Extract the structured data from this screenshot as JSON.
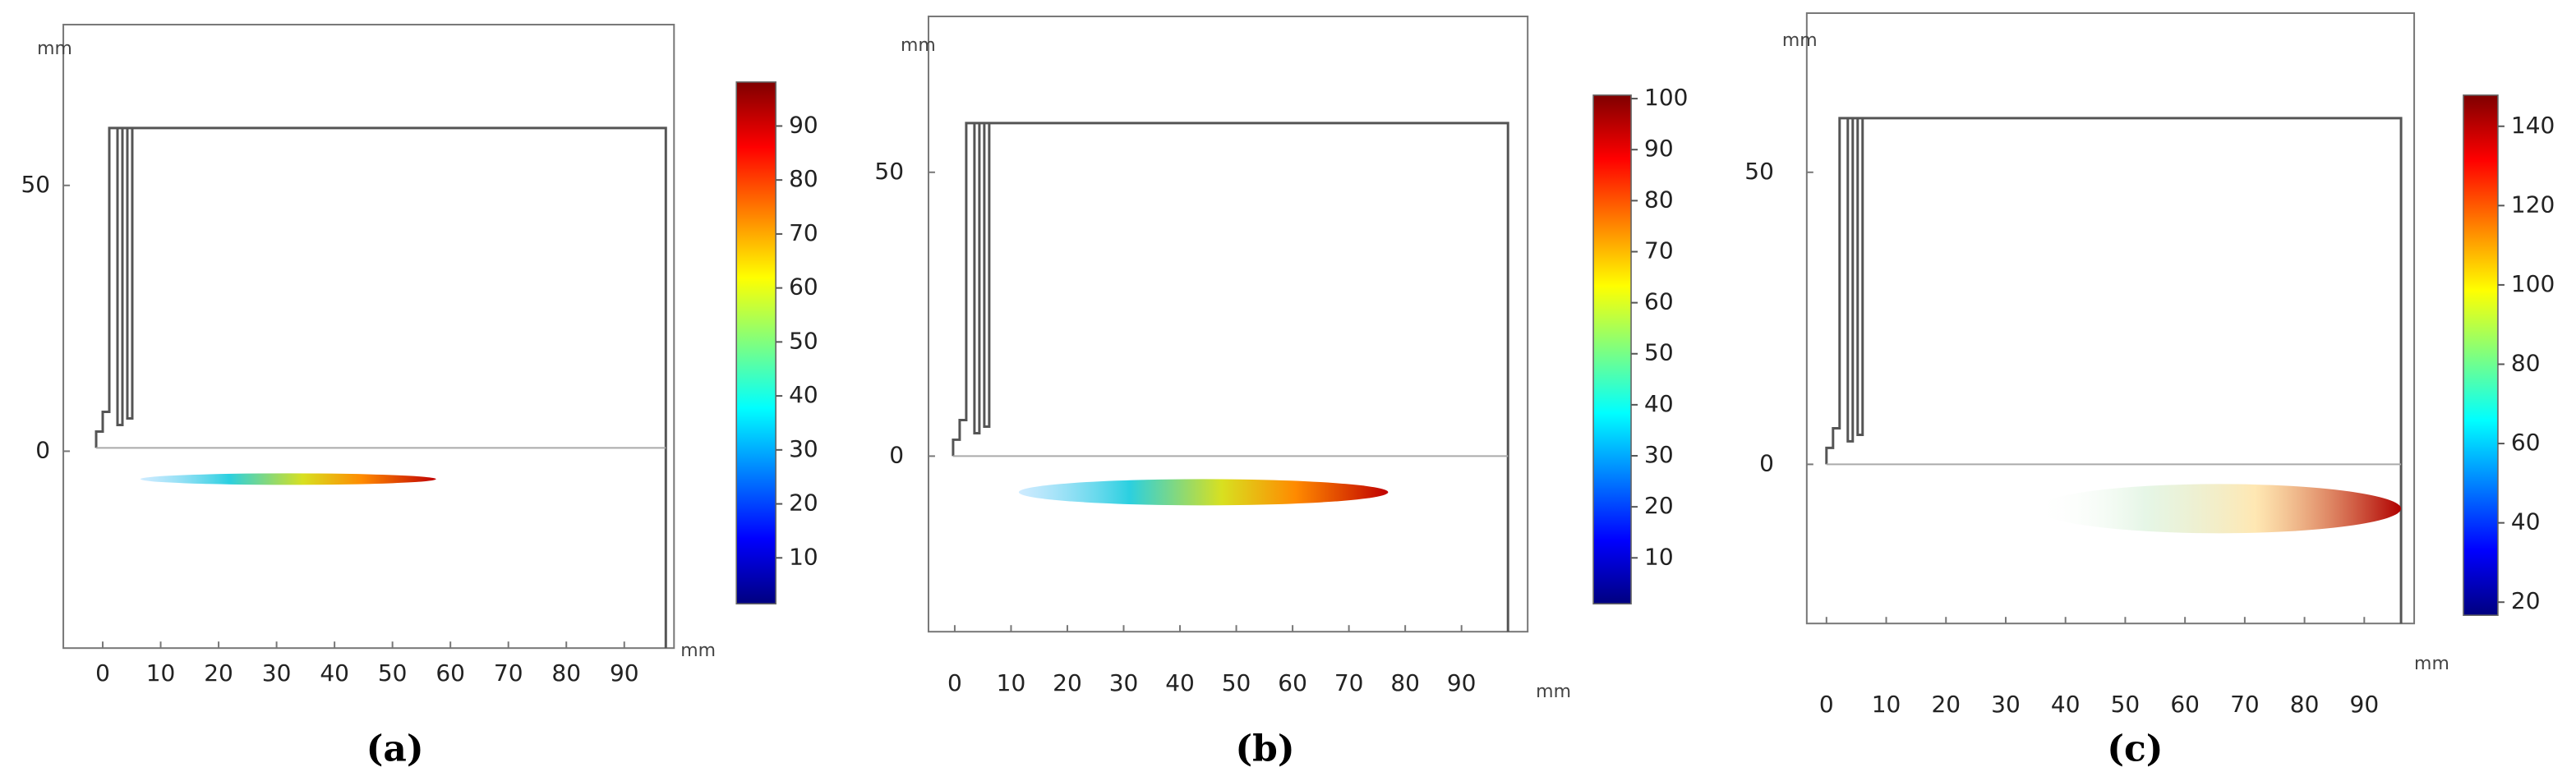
{
  "panels": [
    {
      "caption": "(a)",
      "x_unit": "mm",
      "y_unit": "mm",
      "x_ticks": [
        0,
        10,
        20,
        30,
        40,
        50,
        60,
        70,
        80,
        90
      ],
      "y_ticks": [
        0,
        50
      ],
      "colorbar_ticks": [
        10,
        20,
        30,
        40,
        50,
        60,
        70,
        80,
        90
      ]
    },
    {
      "caption": "(b)",
      "x_unit": "mm",
      "y_unit": "mm",
      "x_ticks": [
        0,
        10,
        20,
        30,
        40,
        50,
        60,
        70,
        80,
        90
      ],
      "y_ticks": [
        0,
        50
      ],
      "colorbar_ticks": [
        10,
        20,
        30,
        40,
        50,
        60,
        70,
        80,
        90,
        100
      ]
    },
    {
      "caption": "(c)",
      "x_unit": "mm",
      "y_unit": "mm",
      "x_ticks": [
        0,
        10,
        20,
        30,
        40,
        50,
        60,
        70,
        80,
        90
      ],
      "y_ticks": [
        0,
        50
      ],
      "colorbar_ticks": [
        20,
        40,
        60,
        80,
        100,
        120,
        140
      ]
    }
  ]
}
